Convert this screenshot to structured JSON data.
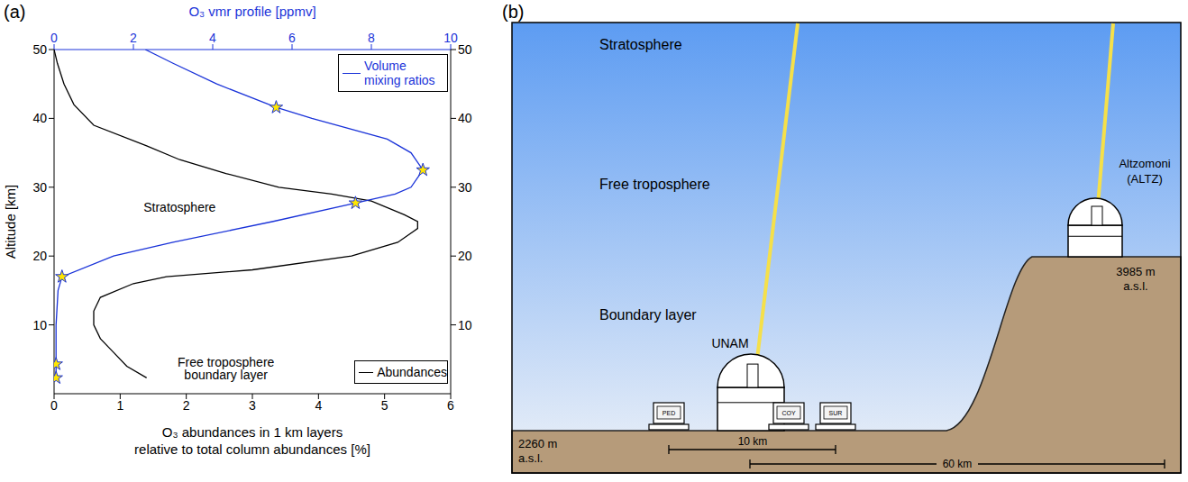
{
  "panels": [
    "(a)",
    "(b)"
  ],
  "chart_data": {
    "type": "line",
    "ylabel": "Altitude [km]",
    "ylim": [
      0,
      50
    ],
    "yticks": [
      10,
      20,
      30,
      40,
      50
    ],
    "xlabel": [
      "O₃ abundances in 1 km layers",
      "relative to total column abundances [%]"
    ],
    "xlim": [
      0,
      6
    ],
    "xticks": [
      0,
      1,
      2,
      3,
      4,
      5,
      6
    ],
    "x2label": "O₃ vmr profile [ppmv]",
    "x2lim": [
      0,
      10
    ],
    "x2ticks": [
      0,
      2,
      4,
      6,
      8,
      10
    ],
    "series": [
      {
        "name": "Volume mixing ratios",
        "color": "#1a33d9",
        "axis": "x2",
        "legend": "upper right",
        "marker": "star",
        "altitude": [
          2.3,
          4.3,
          10,
          15,
          17,
          20,
          22,
          25,
          27.7,
          29,
          30,
          32.5,
          35,
          37,
          40,
          41.6,
          45,
          48,
          50
        ],
        "values": [
          0.05,
          0.05,
          0.05,
          0.1,
          0.2,
          1.5,
          3.0,
          5.5,
          7.6,
          8.6,
          9.0,
          9.3,
          9.0,
          8.4,
          6.5,
          5.6,
          4.1,
          3.0,
          2.3
        ],
        "marker_points": {
          "altitude": [
            2.3,
            4.3,
            17,
            27.7,
            32.5,
            41.6
          ],
          "values": [
            0.05,
            0.05,
            0.2,
            7.6,
            9.3,
            5.6
          ],
          "color": "#ffe600"
        }
      },
      {
        "name": "Abundances",
        "color": "#000000",
        "legend": "lower right",
        "altitude": [
          2.3,
          4,
          6,
          8,
          10,
          12,
          14,
          16,
          17,
          18,
          20,
          22,
          24,
          25,
          26,
          28,
          29,
          30,
          32,
          34,
          36,
          39,
          42,
          45,
          48,
          50
        ],
        "values": [
          1.4,
          1.1,
          0.9,
          0.7,
          0.6,
          0.6,
          0.7,
          1.2,
          1.7,
          3.0,
          4.5,
          5.2,
          5.5,
          5.5,
          5.3,
          4.8,
          4.2,
          3.4,
          2.6,
          1.9,
          1.4,
          0.6,
          0.3,
          0.15,
          0.05,
          0.0
        ]
      }
    ],
    "annotations": [
      "Stratosphere",
      "Free troposphere",
      "boundary layer"
    ]
  },
  "diagram": {
    "layers": [
      "Stratosphere",
      "Free troposphere",
      "Boundary layer"
    ],
    "sites": [
      {
        "label": "UNAM"
      },
      {
        "label": "Altzomoni (ALTZ)",
        "altitude": "3985 m a.s.l."
      }
    ],
    "ground_altitude": "2260 m a.s.l.",
    "stations": [
      "PED",
      "COY",
      "SUR"
    ],
    "distances": [
      "10 km",
      "60 km"
    ]
  }
}
